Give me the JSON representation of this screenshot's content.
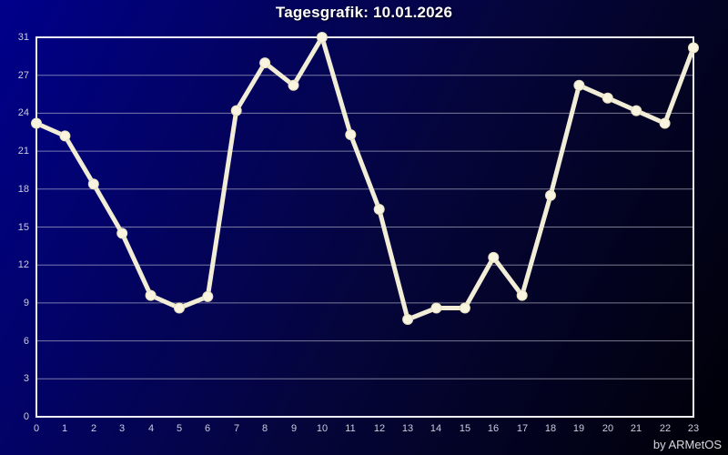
{
  "title": "Tagesgrafik: 10.01.2026",
  "credit": "by ARMetOS",
  "colors": {
    "background_start": "#00008b",
    "background_end": "#000006",
    "line": "#f2edd6",
    "marker_fill": "#f8f4e0",
    "marker_edge": "#e6dfbe",
    "grid": "#c8c8d8",
    "plot_border": "#eeeef6",
    "tick_text": "#ccccdf",
    "title_text": "#ffffff"
  },
  "chart_data": {
    "type": "line",
    "title": "Tagesgrafik: 10.01.2026",
    "x": [
      0,
      1,
      2,
      3,
      4,
      5,
      6,
      7,
      8,
      9,
      10,
      11,
      12,
      13,
      14,
      15,
      16,
      17,
      18,
      19,
      20,
      21,
      22,
      23
    ],
    "values": [
      23.2,
      22.2,
      18.4,
      14.5,
      9.6,
      8.6,
      9.5,
      24.2,
      28.3,
      26.2,
      31.0,
      22.3,
      16.4,
      7.7,
      8.6,
      8.6,
      12.6,
      9.6,
      17.5,
      26.2,
      25.2,
      24.2,
      23.2,
      29.9
    ],
    "xlabel": "",
    "ylabel": "",
    "ylim": [
      0,
      31
    ],
    "y_ticks": [
      31,
      27,
      24,
      21,
      18,
      15,
      12,
      9,
      6,
      3,
      0
    ],
    "grid": "horizontal-only",
    "legend": "none",
    "marker": "circle",
    "note_scale": "gridlines every 3 units; top border labeled with max value 31 one grid-step above the 27 line"
  }
}
